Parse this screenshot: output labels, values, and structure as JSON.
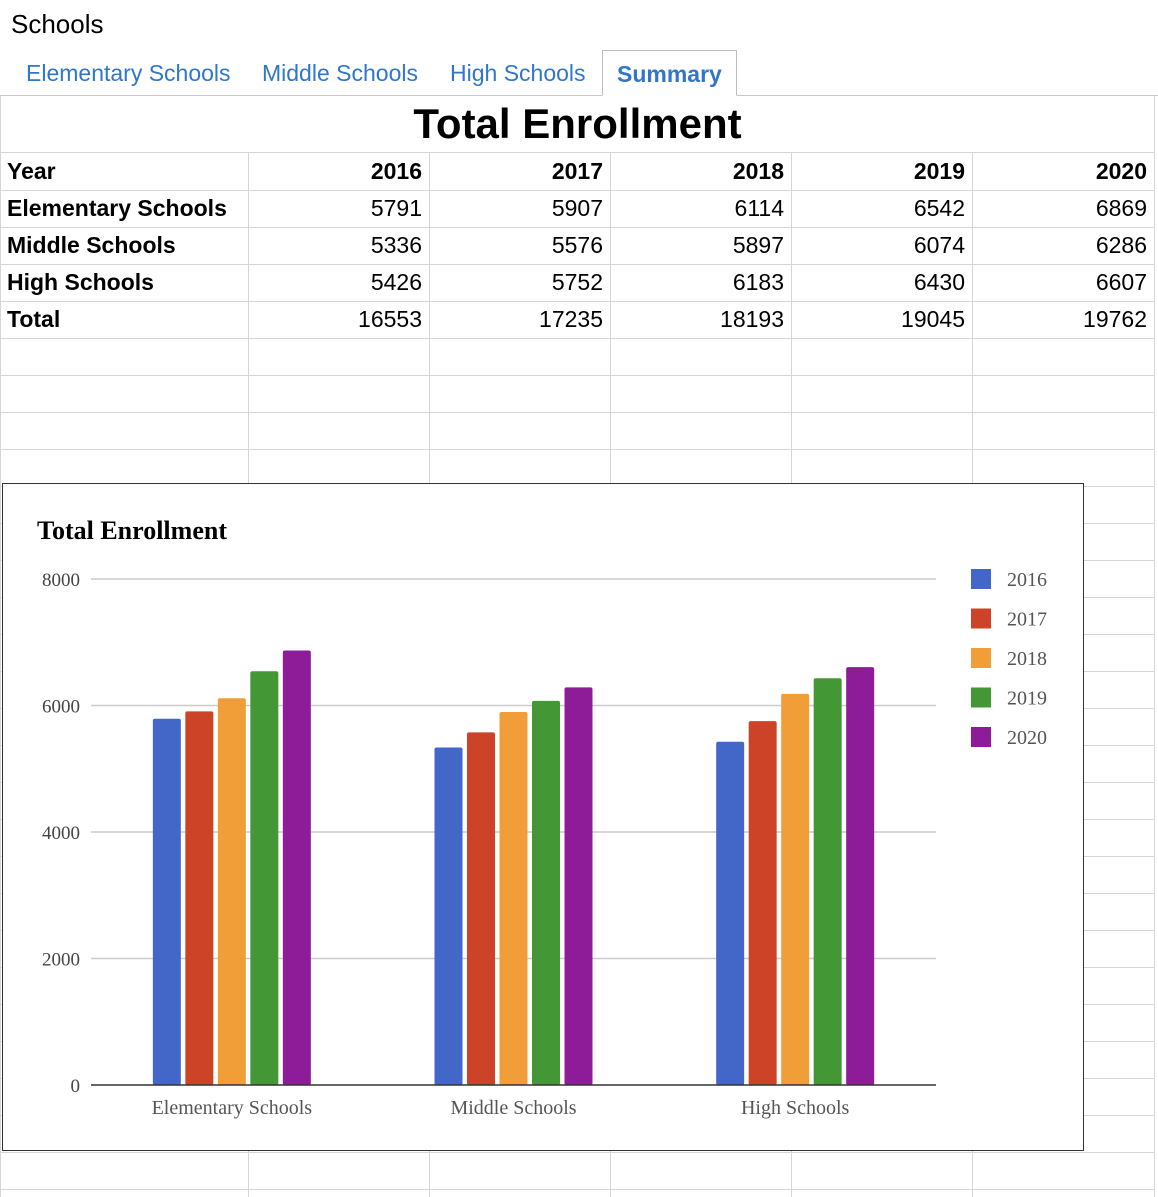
{
  "app": {
    "title": "Schools"
  },
  "tabs": [
    {
      "label": "Elementary Schools",
      "active": false
    },
    {
      "label": "Middle Schools",
      "active": false
    },
    {
      "label": "High Schools",
      "active": false
    },
    {
      "label": "Summary",
      "active": true
    }
  ],
  "sheet": {
    "title": "Total Enrollment",
    "header": {
      "label": "Year",
      "years": [
        "2016",
        "2017",
        "2018",
        "2019",
        "2020"
      ]
    },
    "rows": [
      {
        "label": "Elementary Schools",
        "values": [
          "5791",
          "5907",
          "6114",
          "6542",
          "6869"
        ]
      },
      {
        "label": "Middle Schools",
        "values": [
          "5336",
          "5576",
          "5897",
          "6074",
          "6286"
        ]
      },
      {
        "label": "High Schools",
        "values": [
          "5426",
          "5752",
          "6183",
          "6430",
          "6607"
        ]
      },
      {
        "label": "Total",
        "values": [
          "16553",
          "17235",
          "18193",
          "19045",
          "19762"
        ]
      }
    ]
  },
  "chart_data": {
    "type": "bar",
    "title": "Total Enrollment",
    "xlabel": "",
    "ylabel": "",
    "categories": [
      "Elementary Schools",
      "Middle Schools",
      "High Schools"
    ],
    "series": [
      {
        "name": "2016",
        "values": [
          5791,
          5336,
          5426
        ],
        "color": "#4267c8"
      },
      {
        "name": "2017",
        "values": [
          5907,
          5576,
          5752
        ],
        "color": "#cc4327"
      },
      {
        "name": "2018",
        "values": [
          6114,
          5897,
          6183
        ],
        "color": "#f29e38"
      },
      {
        "name": "2019",
        "values": [
          6542,
          6074,
          6430
        ],
        "color": "#439735"
      },
      {
        "name": "2020",
        "values": [
          6869,
          6286,
          6607
        ],
        "color": "#8e1c99"
      }
    ],
    "ylim": [
      0,
      8000
    ],
    "yticks": [
      "0",
      "2000",
      "4000",
      "6000",
      "8000"
    ],
    "grid": true,
    "legend": "right"
  }
}
